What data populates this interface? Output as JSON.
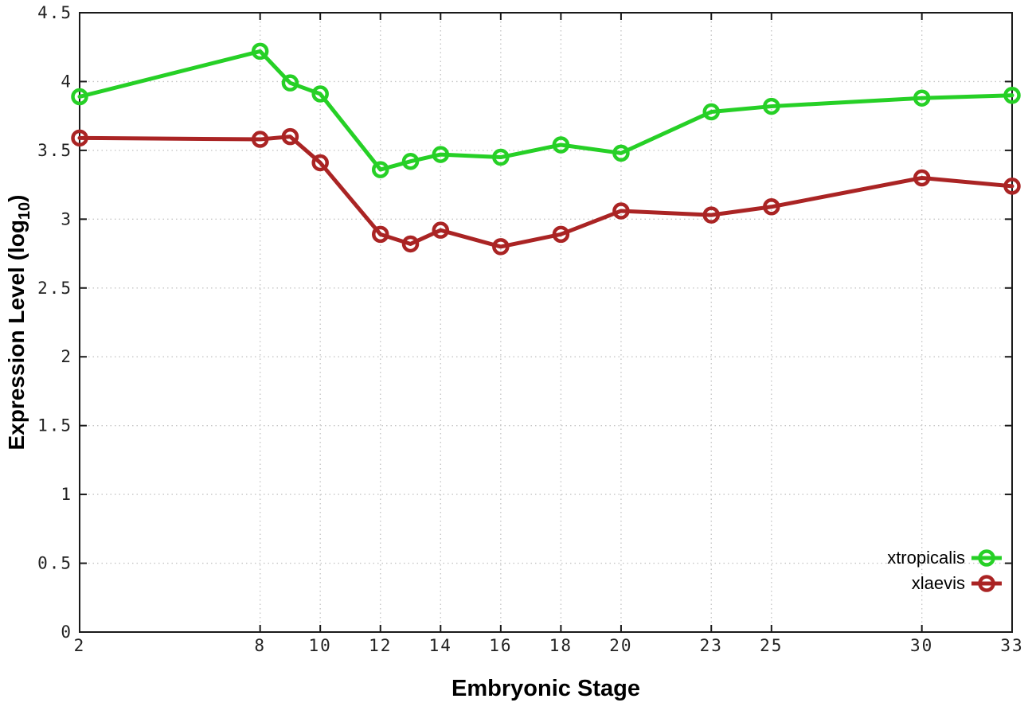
{
  "chart_data": {
    "type": "line",
    "title": "",
    "xlabel": "Embryonic Stage",
    "ylabel": "Expression Level (log10)",
    "ylabel_parts": {
      "main": "Expression Level (log",
      "sub": "10",
      "suffix": ")"
    },
    "xlim": [
      2,
      33
    ],
    "ylim": [
      0,
      4.5
    ],
    "grid": true,
    "x_ticks": [
      2,
      8,
      10,
      12,
      14,
      16,
      18,
      20,
      23,
      25,
      30,
      33
    ],
    "x_tick_labels": [
      "2",
      "8",
      "10",
      "12",
      "14",
      "16",
      "18",
      "20",
      "23",
      "25",
      "30",
      "33"
    ],
    "y_ticks": [
      0,
      0.5,
      1,
      1.5,
      2,
      2.5,
      3,
      3.5,
      4,
      4.5
    ],
    "y_tick_labels": [
      "0",
      "0.5",
      "1",
      "1.5",
      "2",
      "2.5",
      "3",
      "3.5",
      "4",
      "4.5"
    ],
    "x": [
      2,
      8,
      9,
      10,
      12,
      13,
      14,
      16,
      18,
      20,
      23,
      25,
      30,
      33
    ],
    "series": [
      {
        "name": "xtropicalis",
        "color": "#26d026",
        "marker": "open-circle",
        "values": [
          3.89,
          4.22,
          3.99,
          3.91,
          3.36,
          3.42,
          3.47,
          3.45,
          3.54,
          3.48,
          3.78,
          3.82,
          3.88,
          3.9
        ]
      },
      {
        "name": "xlaevis",
        "color": "#aa2424",
        "marker": "open-circle",
        "values": [
          3.59,
          3.58,
          3.6,
          3.41,
          2.89,
          2.82,
          2.92,
          2.8,
          2.89,
          3.06,
          3.03,
          3.09,
          3.3,
          3.24
        ]
      }
    ],
    "legend": {
      "position": "inside-bottom-right",
      "entries": [
        "xtropicalis",
        "xlaevis"
      ]
    },
    "colors": {
      "background": "#ffffff",
      "axis": "#1a1a1a",
      "grid": "#c6c6c6",
      "tick_text": "#222222",
      "title_text": "#000000"
    }
  }
}
